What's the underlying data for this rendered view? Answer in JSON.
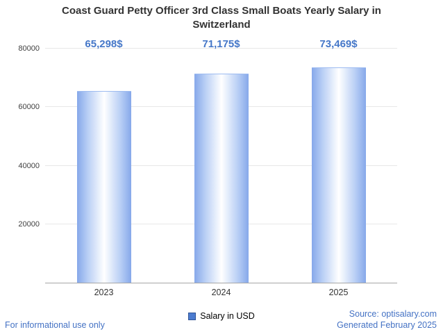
{
  "chart_data": {
    "type": "bar",
    "title": "Coast Guard Petty Officer 3rd Class Small Boats Yearly Salary in Switzerland",
    "categories": [
      "2023",
      "2024",
      "2025"
    ],
    "values": [
      65298,
      71175,
      73469
    ],
    "value_labels": [
      "65,298$",
      "71,175$",
      "73,469$"
    ],
    "series_name": "Salary in USD",
    "ylim": [
      0,
      80000
    ],
    "yticks": [
      20000,
      40000,
      60000,
      80000
    ],
    "grid": true,
    "legend_position": "bottom"
  },
  "footer": {
    "disclaimer": "For informational use only",
    "source": "Source: optisalary.com",
    "generated": "Generated February 2025"
  },
  "colors": {
    "accent_text": "#4577c8",
    "link_text": "#4472c4",
    "bar_edge": "#86a8ea",
    "bar_center": "#ffffff",
    "gridline": "#e7e7e7",
    "axis": "#a6a6a6",
    "title_text": "#333333",
    "legend_swatch": "#4c7cd0"
  }
}
